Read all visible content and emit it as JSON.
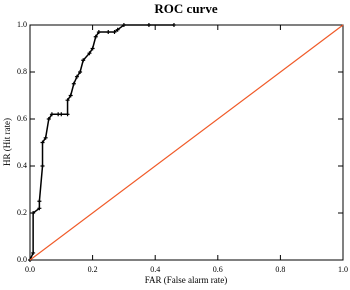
{
  "chart_data": {
    "type": "line",
    "title": "ROC curve",
    "x_label": "FAR (False alarm rate)",
    "y_label": "HR (Hit rate)",
    "series": [
      {
        "color": "#000000",
        "markers": true,
        "x": [
          0,
          0.01,
          0.01,
          0.03,
          0.03,
          0.04,
          0.04,
          0.05,
          0.06,
          0.07,
          0.09,
          0.1,
          0.12,
          0.12,
          0.13,
          0.14,
          0.15,
          0.16,
          0.17,
          0.19,
          0.2,
          0.21,
          0.22,
          0.25,
          0.27,
          0.28,
          0.3,
          0.38,
          0.46
        ],
        "values": [
          0,
          0.03,
          0.2,
          0.22,
          0.25,
          0.4,
          0.5,
          0.52,
          0.6,
          0.62,
          0.62,
          0.62,
          0.62,
          0.68,
          0.7,
          0.75,
          0.78,
          0.8,
          0.85,
          0.88,
          0.9,
          0.95,
          0.97,
          0.97,
          0.97,
          0.98,
          1.0,
          1.0,
          1.0
        ]
      },
      {
        "color": "#f05a28",
        "markers": false,
        "x": [
          0,
          1
        ],
        "values": [
          0,
          1
        ]
      }
    ],
    "xlim": [
      0,
      1
    ],
    "ylim": [
      0,
      1
    ],
    "xticks": [
      {
        "value": 0,
        "label": "0.0"
      },
      0.2,
      0.4,
      0.6,
      0.8,
      {
        "value": 1,
        "label": "1.0"
      }
    ],
    "yticks": [
      {
        "value": 0,
        "label": "0.0"
      },
      0.2,
      0.4,
      0.6,
      0.8,
      {
        "value": 1,
        "label": "1.0"
      }
    ]
  }
}
